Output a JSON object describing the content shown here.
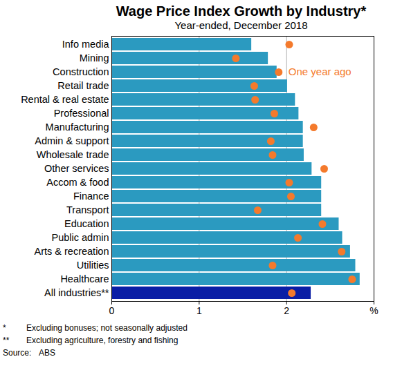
{
  "chart_data": {
    "type": "bar",
    "orientation": "horizontal",
    "title": "Wage Price Index Growth by Industry*",
    "subtitle": "Year-ended, December 2018",
    "categories": [
      "Info media",
      "Mining",
      "Construction",
      "Retail trade",
      "Rental & real estate",
      "Professional",
      "Manufacturing",
      "Admin & support",
      "Wholesale trade",
      "Other services",
      "Accom & food",
      "Finance",
      "Transport",
      "Education",
      "Public admin",
      "Arts & recreation",
      "Utilities",
      "Healthcare",
      "All industries**"
    ],
    "values": [
      1.6,
      1.79,
      1.89,
      2.01,
      2.1,
      2.14,
      2.19,
      2.19,
      2.2,
      2.29,
      2.4,
      2.4,
      2.4,
      2.6,
      2.64,
      2.73,
      2.79,
      2.84,
      2.28
    ],
    "colors": [
      "#2b9ac0",
      "#2b9ac0",
      "#2b9ac0",
      "#2b9ac0",
      "#2b9ac0",
      "#2b9ac0",
      "#2b9ac0",
      "#2b9ac0",
      "#2b9ac0",
      "#2b9ac0",
      "#2b9ac0",
      "#2b9ac0",
      "#2b9ac0",
      "#2b9ac0",
      "#2b9ac0",
      "#2b9ac0",
      "#2b9ac0",
      "#2b9ac0",
      "#0a1ea5"
    ],
    "series": [
      {
        "name": "One year ago",
        "type": "scatter",
        "marker": "circle",
        "color": "#f47a2c",
        "values": [
          2.03,
          1.42,
          1.91,
          1.63,
          1.64,
          1.86,
          2.31,
          1.82,
          1.84,
          2.43,
          2.03,
          2.05,
          1.67,
          2.41,
          2.13,
          2.63,
          1.84,
          2.75,
          2.06
        ]
      }
    ],
    "xlim": [
      0,
      3
    ],
    "xticks": [
      0,
      1,
      2,
      {
        "value": 3,
        "label": "%"
      }
    ],
    "grid": true,
    "notes": [
      {
        "mark": "*",
        "text": "Excluding bonuses; not seasonally adjusted"
      },
      {
        "mark": "**",
        "text": "Excluding agriculture, forestry and fishing"
      }
    ],
    "source": {
      "label": "Source:",
      "text": "ABS"
    }
  }
}
